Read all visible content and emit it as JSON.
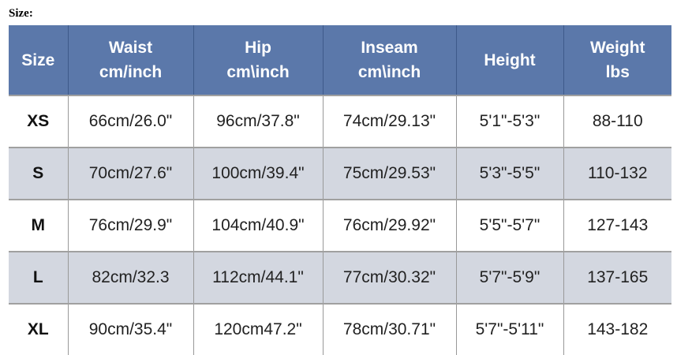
{
  "title": "Size:",
  "headers": [
    [
      "Size",
      ""
    ],
    [
      "Waist",
      "cm/inch"
    ],
    [
      "Hip",
      "cm\\inch"
    ],
    [
      "Inseam",
      "cm\\inch"
    ],
    [
      "Height",
      ""
    ],
    [
      "Weight",
      "lbs"
    ]
  ],
  "rows": [
    [
      "XS",
      "66cm/26.0\"",
      "96cm/37.8\"",
      "74cm/29.13\"",
      "5'1\"-5'3\"",
      "88-110"
    ],
    [
      "S",
      "70cm/27.6\"",
      "100cm/39.4\"",
      "75cm/29.53\"",
      "5'3\"-5'5\"",
      "110-132"
    ],
    [
      "M",
      "76cm/29.9\"",
      "104cm/40.9\"",
      "76cm/29.92\"",
      "5'5\"-5'7\"",
      "127-143"
    ],
    [
      "L",
      "82cm/32.3",
      "112cm/44.1\"",
      "77cm/30.32\"",
      "5'7\"-5'9\"",
      "137-165"
    ],
    [
      "XL",
      "90cm/35.4\"",
      "120cm47.2\"",
      "78cm/30.71\"",
      "5'7\"-5'11\"",
      "143-182"
    ]
  ],
  "colors": {
    "header": "#5b78aa",
    "alt_row": "#d3d7e0"
  }
}
